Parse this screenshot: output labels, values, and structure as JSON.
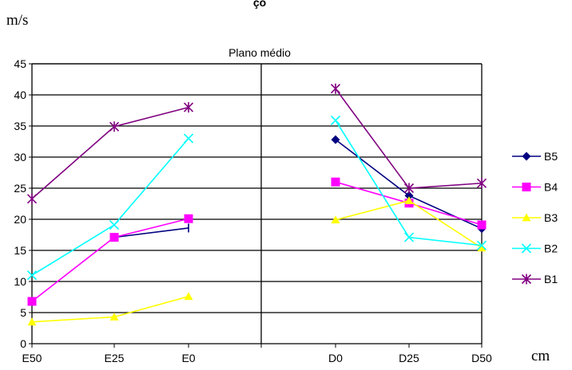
{
  "chart_data": {
    "type": "line",
    "title": "çõ",
    "unit_top": "m/s",
    "unit_right": "cm",
    "subtitle": "Plano médio",
    "categories": [
      "E50",
      "E25",
      "E0",
      "D0",
      "D25",
      "D50"
    ],
    "ylim": [
      0,
      45
    ],
    "yticks": [
      0,
      5,
      10,
      15,
      20,
      25,
      30,
      35,
      40,
      45
    ],
    "grid": true,
    "legend": "right",
    "series": [
      {
        "name": "B5",
        "color": "#000080",
        "marker": "diamond",
        "values": [
          null,
          17.1,
          18.6,
          32.8,
          23.8,
          18.5
        ]
      },
      {
        "name": "B4",
        "color": "#ff00ff",
        "marker": "square",
        "values": [
          6.8,
          17.1,
          20.1,
          26.0,
          22.6,
          19.1
        ]
      },
      {
        "name": "B3",
        "color": "#ffff00",
        "marker": "triangle",
        "values": [
          3.5,
          4.3,
          7.6,
          19.9,
          23.0,
          15.4
        ]
      },
      {
        "name": "B2",
        "color": "#00ffff",
        "marker": "x",
        "values": [
          11.0,
          19.1,
          33.0,
          35.9,
          17.1,
          15.8
        ]
      },
      {
        "name": "B1",
        "color": "#800080",
        "marker": "star",
        "values": [
          23.3,
          34.9,
          38.0,
          41.0,
          25.0,
          25.8
        ]
      }
    ]
  }
}
